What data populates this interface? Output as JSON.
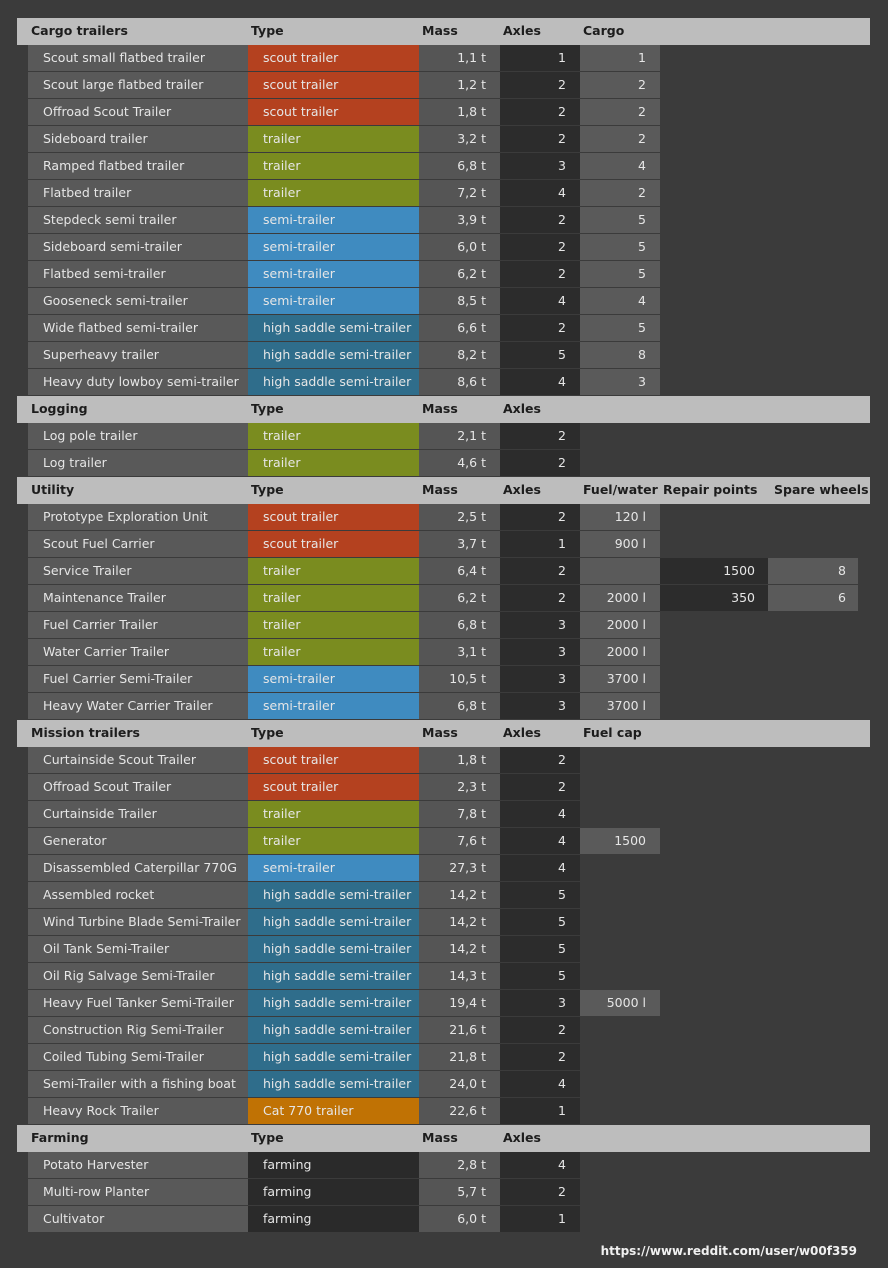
{
  "sections": [
    {
      "title": "Cargo trailers",
      "columns": [
        "Type",
        "Mass",
        "Axles",
        "Cargo"
      ],
      "rows": [
        {
          "cells": [
            "Scout small flatbed trailer",
            "scout trailer",
            "1,1 t",
            1,
            1
          ],
          "type_color": "#b4411f"
        },
        {
          "cells": [
            "Scout large flatbed trailer",
            "scout trailer",
            "1,2 t",
            2,
            2
          ],
          "type_color": "#b4411f"
        },
        {
          "cells": [
            "Offroad Scout Trailer",
            "scout trailer",
            "1,8 t",
            2,
            2
          ],
          "type_color": "#b4411f"
        },
        {
          "cells": [
            "Sideboard trailer",
            "trailer",
            "3,2 t",
            2,
            2
          ],
          "type_color": "#7a8c1f"
        },
        {
          "cells": [
            "Ramped flatbed trailer",
            "trailer",
            "6,8 t",
            3,
            4
          ],
          "type_color": "#7a8c1f"
        },
        {
          "cells": [
            "Flatbed trailer",
            "trailer",
            "7,2 t",
            4,
            2
          ],
          "type_color": "#7a8c1f"
        },
        {
          "cells": [
            "Stepdeck semi trailer",
            "semi-trailer",
            "3,9 t",
            2,
            5
          ],
          "type_color": "#3f8bc0"
        },
        {
          "cells": [
            "Sideboard semi-trailer",
            "semi-trailer",
            "6,0 t",
            2,
            5
          ],
          "type_color": "#3f8bc0"
        },
        {
          "cells": [
            "Flatbed semi-trailer",
            "semi-trailer",
            "6,2 t",
            2,
            5
          ],
          "type_color": "#3f8bc0"
        },
        {
          "cells": [
            "Gooseneck semi-trailer",
            "semi-trailer",
            "8,5 t",
            4,
            4
          ],
          "type_color": "#3f8bc0"
        },
        {
          "cells": [
            "Wide flatbed semi-trailer",
            "high saddle semi-trailer",
            "6,6 t",
            2,
            5
          ],
          "type_color": "#2f6d8b"
        },
        {
          "cells": [
            "Superheavy trailer",
            "high saddle semi-trailer",
            "8,2 t",
            5,
            8
          ],
          "type_color": "#2f6d8b"
        },
        {
          "cells": [
            "Heavy duty lowboy semi-trailer",
            "high saddle semi-trailer",
            "8,6 t",
            4,
            3
          ],
          "type_color": "#2f6d8b"
        }
      ]
    },
    {
      "title": "Logging",
      "columns": [
        "Type",
        "Mass",
        "Axles"
      ],
      "rows": [
        {
          "cells": [
            "Log pole trailer",
            "trailer",
            "2,1 t",
            2
          ],
          "type_color": "#7a8c1f"
        },
        {
          "cells": [
            "Log trailer",
            "trailer",
            "4,6 t",
            2
          ],
          "type_color": "#7a8c1f"
        }
      ]
    },
    {
      "title": "Utility",
      "columns": [
        "Type",
        "Mass",
        "Axles",
        "Fuel/water",
        "Repair points",
        "Spare wheels"
      ],
      "rows": [
        {
          "cells": [
            "Prototype Exploration Unit",
            "scout trailer",
            "2,5 t",
            2,
            "120 l"
          ],
          "type_color": "#b4411f"
        },
        {
          "cells": [
            "Scout Fuel Carrier",
            "scout trailer",
            "3,7 t",
            1,
            "900 l"
          ],
          "type_color": "#b4411f"
        },
        {
          "cells": [
            "Service Trailer",
            "trailer",
            "6,4 t",
            2,
            null,
            1500,
            8
          ],
          "type_color": "#7a8c1f"
        },
        {
          "cells": [
            "Maintenance Trailer",
            "trailer",
            "6,2 t",
            2,
            "2000 l",
            350,
            6
          ],
          "type_color": "#7a8c1f"
        },
        {
          "cells": [
            "Fuel Carrier Trailer",
            "trailer",
            "6,8 t",
            3,
            "2000 l"
          ],
          "type_color": "#7a8c1f"
        },
        {
          "cells": [
            "Water Carrier Trailer",
            "trailer",
            "3,1 t",
            3,
            "2000 l"
          ],
          "type_color": "#7a8c1f"
        },
        {
          "cells": [
            "Fuel Carrier Semi-Trailer",
            "semi-trailer",
            "10,5 t",
            3,
            "3700 l"
          ],
          "type_color": "#3f8bc0"
        },
        {
          "cells": [
            "Heavy Water Carrier Trailer",
            "semi-trailer",
            "6,8 t",
            3,
            "3700 l"
          ],
          "type_color": "#3f8bc0"
        }
      ]
    },
    {
      "title": "Mission trailers",
      "columns": [
        "Type",
        "Mass",
        "Axles",
        "Fuel cap"
      ],
      "rows": [
        {
          "cells": [
            "Curtainside Scout Trailer",
            "scout trailer",
            "1,8 t",
            2
          ],
          "type_color": "#b4411f"
        },
        {
          "cells": [
            "Offroad Scout Trailer",
            "scout trailer",
            "2,3 t",
            2
          ],
          "type_color": "#b4411f"
        },
        {
          "cells": [
            "Curtainside Trailer",
            "trailer",
            "7,8 t",
            4
          ],
          "type_color": "#7a8c1f"
        },
        {
          "cells": [
            "Generator",
            "trailer",
            "7,6 t",
            4,
            1500
          ],
          "type_color": "#7a8c1f"
        },
        {
          "cells": [
            "Disassembled Caterpillar 770G",
            "semi-trailer",
            "27,3 t",
            4
          ],
          "type_color": "#3f8bc0"
        },
        {
          "cells": [
            "Assembled rocket",
            "high saddle semi-trailer",
            "14,2 t",
            5
          ],
          "type_color": "#2f6d8b"
        },
        {
          "cells": [
            "Wind Turbine Blade Semi-Trailer",
            "high saddle semi-trailer",
            "14,2 t",
            5
          ],
          "type_color": "#2f6d8b"
        },
        {
          "cells": [
            "Oil Tank Semi-Trailer",
            "high saddle semi-trailer",
            "14,2 t",
            5
          ],
          "type_color": "#2f6d8b"
        },
        {
          "cells": [
            "Oil Rig Salvage Semi-Trailer",
            "high saddle semi-trailer",
            "14,3 t",
            5
          ],
          "type_color": "#2f6d8b"
        },
        {
          "cells": [
            "Heavy Fuel Tanker Semi-Trailer",
            "high saddle semi-trailer",
            "19,4 t",
            3,
            "5000 l"
          ],
          "type_color": "#2f6d8b"
        },
        {
          "cells": [
            "Construction Rig Semi-Trailer",
            "high saddle semi-trailer",
            "21,6 t",
            2
          ],
          "type_color": "#2f6d8b"
        },
        {
          "cells": [
            "Coiled Tubing Semi-Trailer",
            "high saddle semi-trailer",
            "21,8 t",
            2
          ],
          "type_color": "#2f6d8b"
        },
        {
          "cells": [
            "Semi-Trailer with a fishing boat",
            "high saddle semi-trailer",
            "24,0 t",
            4
          ],
          "type_color": "#2f6d8b"
        },
        {
          "cells": [
            "Heavy Rock Trailer",
            "Cat 770 trailer",
            "22,6 t",
            1
          ],
          "type_color": "#c07204"
        }
      ]
    },
    {
      "title": "Farming",
      "columns": [
        "Type",
        "Mass",
        "Axles"
      ],
      "rows": [
        {
          "cells": [
            "Potato Harvester",
            "farming",
            "2,8 t",
            4
          ],
          "type_color": "#2a2a2a"
        },
        {
          "cells": [
            "Multi-row Planter",
            "farming",
            "5,7 t",
            2
          ],
          "type_color": "#2a2a2a"
        },
        {
          "cells": [
            "Cultivator",
            "farming",
            "6,0 t",
            1
          ],
          "type_color": "#2a2a2a"
        }
      ]
    }
  ],
  "footer": "https://www.reddit.com/user/w00f359"
}
